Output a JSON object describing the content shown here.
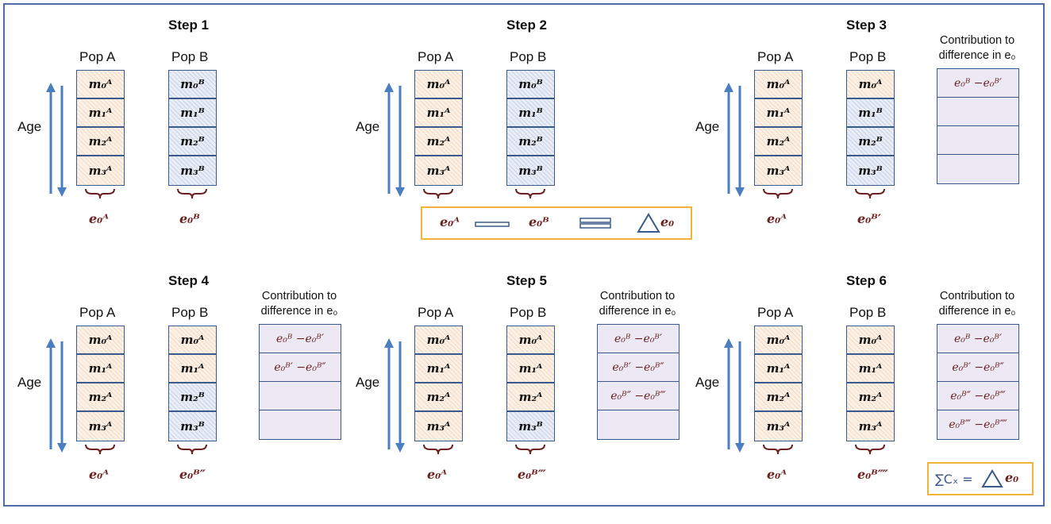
{
  "labels": {
    "pop_a": "Pop A",
    "pop_b": "Pop B",
    "age": "Age",
    "contrib": "Contribution to difference in e₀"
  },
  "steps": [
    {
      "title": "Step 1",
      "col_a": [
        "m₀ᴬ",
        "m₁ᴬ",
        "m₂ᴬ",
        "m₃ᴬ"
      ],
      "col_b": [
        "m₀ᴮ",
        "m₁ᴮ",
        "m₂ᴮ",
        "m₃ᴮ"
      ],
      "e_a": "e₀ᴬ",
      "e_b": "e₀ᴮ",
      "contrib": []
    },
    {
      "title": "Step 2",
      "col_a": [
        "m₀ᴬ",
        "m₁ᴬ",
        "m₂ᴬ",
        "m₃ᴬ"
      ],
      "col_b": [
        "m₀ᴮ",
        "m₁ᴮ",
        "m₂ᴮ",
        "m₃ᴮ"
      ],
      "e_a": "e₀ᴬ",
      "e_b": "e₀ᴮ",
      "contrib": []
    },
    {
      "title": "Step 3",
      "col_a": [
        "m₀ᴬ",
        "m₁ᴬ",
        "m₂ᴬ",
        "m₃ᴬ"
      ],
      "col_b": [
        "m₀ᴬ",
        "m₁ᴮ",
        "m₂ᴮ",
        "m₃ᴮ"
      ],
      "e_a": "e₀ᴬ",
      "e_b": "e₀ᴮ′",
      "contrib": [
        "e₀ᴮ −e₀ᴮ′",
        "",
        "",
        ""
      ]
    },
    {
      "title": "Step 4",
      "col_a": [
        "m₀ᴬ",
        "m₁ᴬ",
        "m₂ᴬ",
        "m₃ᴬ"
      ],
      "col_b": [
        "m₀ᴬ",
        "m₁ᴬ",
        "m₂ᴮ",
        "m₃ᴮ"
      ],
      "e_a": "e₀ᴬ",
      "e_b": "e₀ᴮ″",
      "contrib": [
        "e₀ᴮ −e₀ᴮ′",
        "e₀ᴮ′ −e₀ᴮ″",
        "",
        ""
      ]
    },
    {
      "title": "Step 5",
      "col_a": [
        "m₀ᴬ",
        "m₁ᴬ",
        "m₂ᴬ",
        "m₃ᴬ"
      ],
      "col_b": [
        "m₀ᴬ",
        "m₁ᴬ",
        "m₂ᴬ",
        "m₃ᴮ"
      ],
      "e_a": "e₀ᴬ",
      "e_b": "e₀ᴮ‴",
      "contrib": [
        "e₀ᴮ −e₀ᴮ′",
        "e₀ᴮ′ −e₀ᴮ″",
        "e₀ᴮ″ −e₀ᴮ‴",
        ""
      ]
    },
    {
      "title": "Step 6",
      "col_a": [
        "m₀ᴬ",
        "m₁ᴬ",
        "m₂ᴬ",
        "m₃ᴬ"
      ],
      "col_b": [
        "m₀ᴬ",
        "m₁ᴬ",
        "m₂ᴬ",
        "m₃ᴬ"
      ],
      "e_a": "e₀ᴬ",
      "e_b": "e₀ᴮ⁗",
      "contrib": [
        "e₀ᴮ −e₀ᴮ′",
        "e₀ᴮ′ −e₀ᴮ″",
        "e₀ᴮ″ −e₀ᴮ‴",
        "e₀ᴮ‴ −e₀ᴮ⁗"
      ]
    }
  ],
  "step2_box": {
    "e_a": "e₀ᴬ",
    "e_b": "e₀ᴮ",
    "delta": "e₀"
  },
  "sum_box": {
    "sum": "∑Cₓ =",
    "delta": "e₀"
  },
  "colors": {
    "pop_a_hatch": "#f4d9c2",
    "pop_b_hatch": "#c8d3e6",
    "border": "#3b5a8c",
    "formula": "#6b2020",
    "highlight": "#f0b43a",
    "arrow": "#4a7ec0"
  }
}
